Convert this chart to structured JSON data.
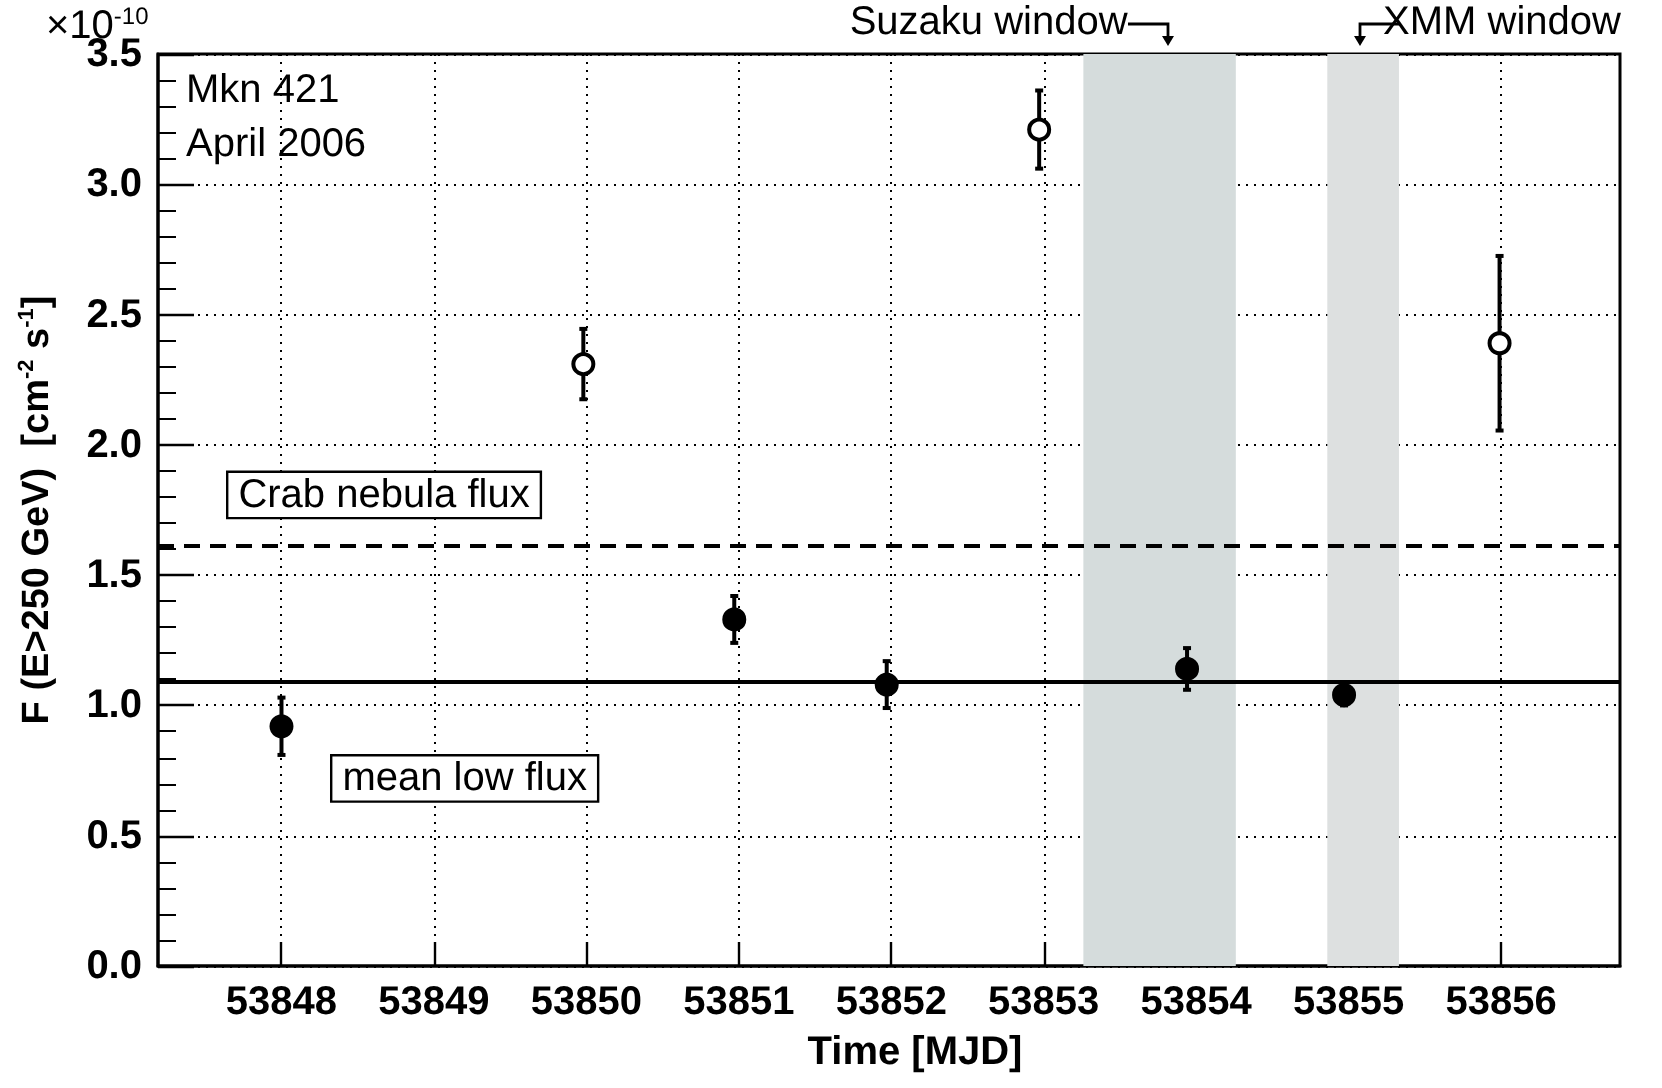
{
  "chart_data": {
    "type": "scatter",
    "xlabel": "Time [MJD]",
    "ylabel": "F (E>250 GeV)  [cm$^{-2}$ s$^{-1}$]",
    "annotations": [
      "×10$^{-10}$",
      "Mkn 421",
      "April 2006"
    ],
    "xlim": [
      53847.19,
      53856.78
    ],
    "xticks": [
      53848,
      53849,
      53850,
      53851,
      53852,
      53853,
      53854,
      53855,
      53856
    ],
    "ylim": [
      0,
      3.5
    ],
    "yticks": [
      {
        "value": 0,
        "label": "0.0"
      },
      {
        "value": 0.5,
        "label": "0.5"
      },
      {
        "value": 1,
        "label": "1.0"
      },
      {
        "value": 1.5,
        "label": "1.5"
      },
      {
        "value": 2,
        "label": "2.0"
      },
      {
        "value": 2.5,
        "label": "2.5"
      },
      {
        "value": 3,
        "label": "3.0"
      },
      {
        "value": 3.5,
        "label": "3.5"
      }
    ],
    "grid": true,
    "marker": "circle",
    "series": [
      {
        "color": "#000000",
        "x": [
          53848,
          53850.97,
          53851.97,
          53853.94,
          53854.97
        ],
        "values": [
          0.92,
          1.33,
          1.08,
          1.14,
          1.04
        ],
        "errors": [
          0.11,
          0.09,
          0.09,
          0.08,
          0.04
        ]
      },
      {
        "color": "#ffffff",
        "x": [
          53849.98,
          53852.97,
          53855.99
        ],
        "values": [
          2.31,
          3.21,
          2.39
        ],
        "errors": [
          0.135,
          0.15,
          0.335
        ]
      }
    ],
    "ref_lines": [
      {
        "axis": "y",
        "value": 1.61,
        "label": "Crab nebula flux",
        "color": "#000000",
        "line_style": "dashed"
      },
      {
        "axis": "y",
        "value": 1.09,
        "label": "mean low flux",
        "color": "#000000",
        "line_style": "solid"
      }
    ],
    "bands": [
      {
        "axis": "x",
        "from": 53853.26,
        "to": 53854.26,
        "label": "Suzaku window",
        "color": "#d5dcdc"
      },
      {
        "axis": "x",
        "from": 53854.86,
        "to": 53855.33,
        "label": "XMM window",
        "color": "#dde0e0"
      }
    ]
  }
}
